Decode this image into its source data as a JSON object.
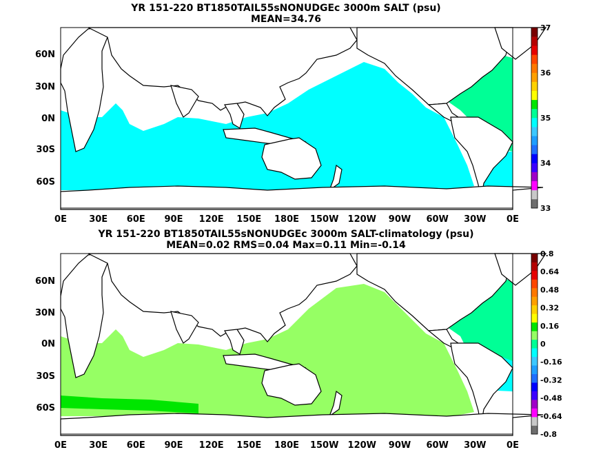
{
  "chart_data": [
    {
      "type": "heatmap",
      "title": "YR 151-220 BT1850TAIL55sNONUDGEc 3000m SALT (psu)",
      "subtitle": "MEAN=34.76",
      "x_ticks": [
        "0E",
        "30E",
        "60E",
        "90E",
        "120E",
        "150E",
        "180E",
        "150W",
        "120W",
        "90W",
        "60W",
        "30W",
        "0E"
      ],
      "y_ticks": [
        "60N",
        "30N",
        "0N",
        "30S",
        "60S"
      ],
      "xlim": [
        0,
        360
      ],
      "ylim": [
        -80,
        88
      ],
      "colorbar": {
        "ticks": [
          "37",
          "36",
          "35",
          "34",
          "33"
        ],
        "range": [
          33,
          37
        ],
        "colors": [
          "#6e6e6e",
          "#c8c8c8",
          "#ff00ff",
          "#a000c8",
          "#3c00ff",
          "#0000ff",
          "#1e6eff",
          "#1e9eff",
          "#3cc8ff",
          "#00ffff",
          "#00ff96",
          "#00e600",
          "#ffff00",
          "#ffd200",
          "#ffa000",
          "#ff7800",
          "#ff4600",
          "#e60000",
          "#b40000",
          "#780000"
        ]
      },
      "regions": [
        {
          "name": "pacific",
          "value": 34.7,
          "color": "#00ffff"
        },
        {
          "name": "indian-southern",
          "value": 34.7,
          "color": "#00ffff"
        },
        {
          "name": "north-atlantic",
          "value": 34.95,
          "color": "#00ff96"
        }
      ]
    },
    {
      "type": "heatmap",
      "title": "YR 151-220 BT1850TAIL55sNONUDGEc 3000m SALT-climatology (psu)",
      "subtitle": "MEAN=0.02   RMS=0.04   Max=0.11   Min=-0.14",
      "x_ticks": [
        "0E",
        "30E",
        "60E",
        "90E",
        "120E",
        "150E",
        "180E",
        "150W",
        "120W",
        "90W",
        "60W",
        "30W",
        "0E"
      ],
      "y_ticks": [
        "60N",
        "30N",
        "0N",
        "30S",
        "60S"
      ],
      "xlim": [
        0,
        360
      ],
      "ylim": [
        -80,
        88
      ],
      "colorbar": {
        "ticks": [
          "0.8",
          "0.64",
          "0.48",
          "0.32",
          "0.16",
          "0",
          "-0.16",
          "-0.32",
          "-0.48",
          "-0.64",
          "-0.8"
        ],
        "range": [
          -0.8,
          0.8
        ],
        "colors": [
          "#6e6e6e",
          "#c8c8c8",
          "#ff00ff",
          "#a000c8",
          "#3c00ff",
          "#0000ff",
          "#1e6eff",
          "#1e9eff",
          "#3cc8ff",
          "#00ffff",
          "#00ff96",
          "#96ff64",
          "#00e600",
          "#ffff00",
          "#ffd200",
          "#ffa000",
          "#ff7800",
          "#ff4600",
          "#e60000",
          "#b40000",
          "#780000"
        ]
      },
      "regions": [
        {
          "name": "pacific",
          "value": 0.04,
          "color": "#96ff64"
        },
        {
          "name": "atlantic-north",
          "value": -0.05,
          "color": "#00ff96"
        },
        {
          "name": "south-atlantic",
          "value": -0.12,
          "color": "#00ffff"
        },
        {
          "name": "southern-ocean-band",
          "value": 0.1,
          "color": "#00e600"
        }
      ]
    }
  ]
}
